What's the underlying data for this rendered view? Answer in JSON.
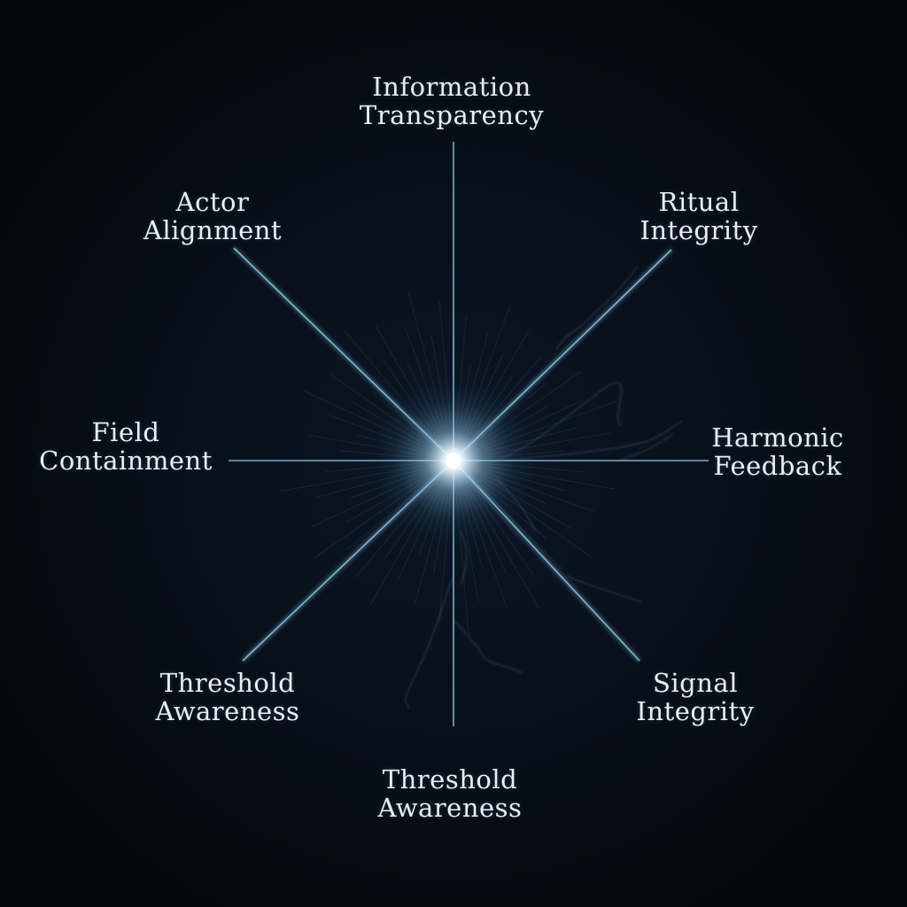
{
  "diagram": {
    "nodes": [
      {
        "id": "top",
        "line1": "Information",
        "line2": "Transparency"
      },
      {
        "id": "top-right",
        "line1": "Ritual",
        "line2": "Integrity"
      },
      {
        "id": "right",
        "line1": "Harmonic",
        "line2": "Feedback"
      },
      {
        "id": "bottom-right",
        "line1": "Signal",
        "line2": "Integrity"
      },
      {
        "id": "bottom",
        "line1": "Threshold",
        "line2": "Awareness"
      },
      {
        "id": "bottom-left",
        "line1": "Threshold",
        "line2": "Awareness"
      },
      {
        "id": "left",
        "line1": "Field",
        "line2": "Containment"
      },
      {
        "id": "top-left",
        "line1": "Actor",
        "line2": "Alignment"
      }
    ]
  },
  "colors": {
    "background": "#05090f",
    "ray": "#8ec9ea",
    "core": "#ffffff",
    "label": "#e9eef2"
  }
}
